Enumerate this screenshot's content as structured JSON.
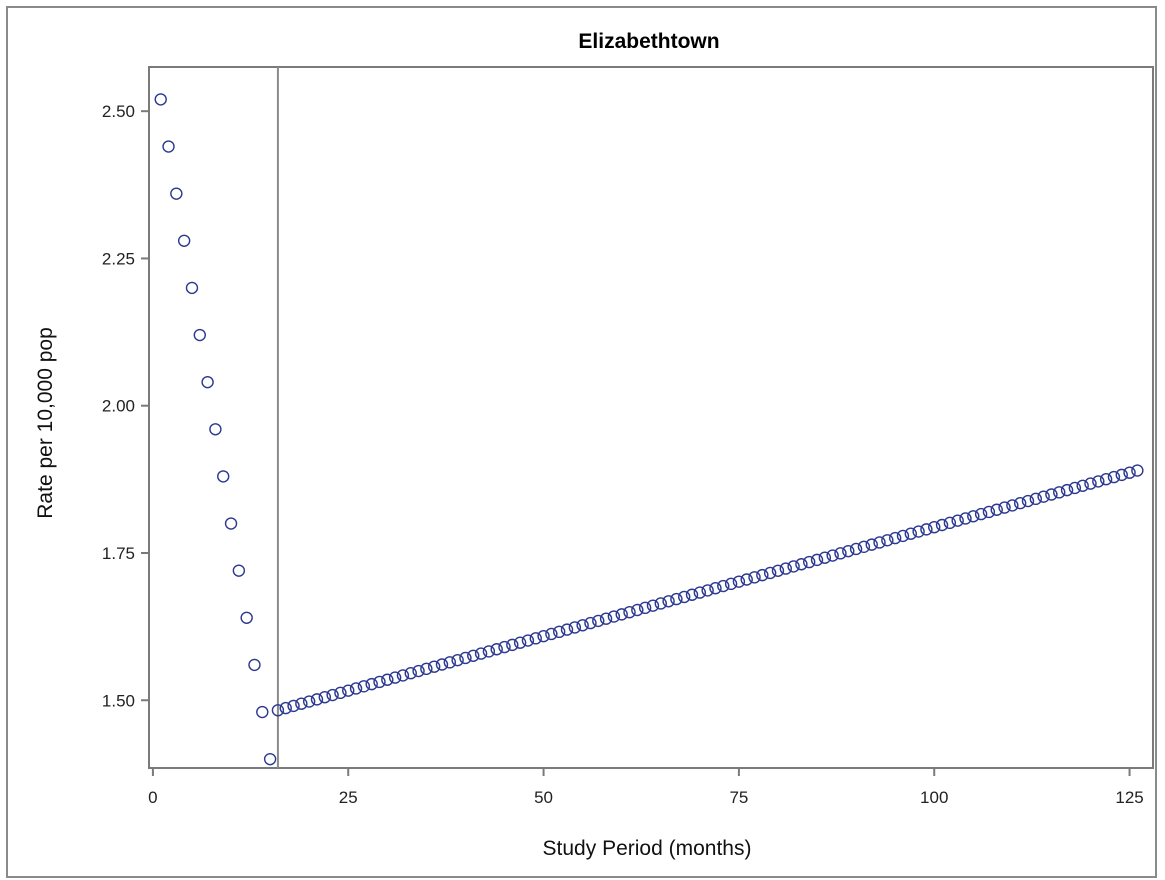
{
  "chart_data": {
    "type": "scatter",
    "title": "Elizabethtown",
    "xlabel": "Study Period (months)",
    "ylabel": "Rate per 10,000 pop",
    "xlim": [
      -0.5,
      128
    ],
    "ylim": [
      1.385,
      2.575
    ],
    "x_ticks": [
      "0",
      "25",
      "50",
      "75",
      "100",
      "125"
    ],
    "x_tick_values": [
      0,
      25,
      50,
      75,
      100,
      125
    ],
    "y_ticks": [
      "1.50",
      "1.75",
      "2.00",
      "2.25",
      "2.50"
    ],
    "y_tick_values": [
      1.5,
      1.75,
      2.0,
      2.25,
      2.5
    ],
    "reference_line_x": 16,
    "marker": "open-circle",
    "grid": false,
    "legend": "none",
    "series_color": "#2b3990",
    "segments": [
      {
        "x_start": 1,
        "x_end": 15,
        "y_start": 2.52,
        "y_end": 1.4
      },
      {
        "x_start": 16,
        "x_end": 126,
        "y_start": 1.483,
        "y_end": 1.89
      }
    ]
  },
  "colors": {
    "frame": "#8a8a8a",
    "axis": "#7a7a7a",
    "marker": "#2b3990"
  }
}
